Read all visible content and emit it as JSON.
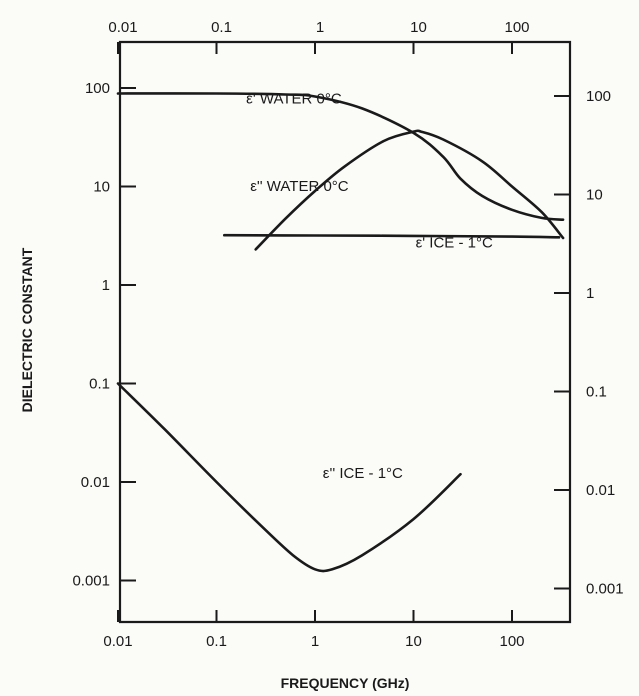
{
  "chart_data": {
    "type": "line",
    "title": "",
    "xlabel": "FREQUENCY (GHz)",
    "ylabel": "DIELECTRIC CONSTANT",
    "x_scale": "log",
    "y_scale": "log",
    "xlim": [
      0.01,
      400
    ],
    "ylim": [
      0.0005,
      150
    ],
    "x_ticks": [
      {
        "value": 0.01,
        "label": "0.01"
      },
      {
        "value": 0.1,
        "label": "0.1"
      },
      {
        "value": 1,
        "label": "1"
      },
      {
        "value": 10,
        "label": "10"
      },
      {
        "value": 100,
        "label": "100"
      }
    ],
    "y_ticks": [
      {
        "value": 100,
        "label": "100"
      },
      {
        "value": 10,
        "label": "10"
      },
      {
        "value": 1,
        "label": "1"
      },
      {
        "value": 0.1,
        "label": "0.1"
      },
      {
        "value": 0.01,
        "label": "0.01"
      },
      {
        "value": 0.001,
        "label": "0.001"
      }
    ],
    "grid": false,
    "series": [
      {
        "name": "ε' WATER 0°C",
        "x": [
          0.01,
          0.1,
          0.5,
          1,
          3,
          10,
          20,
          30,
          50,
          100,
          200,
          330
        ],
        "y": [
          88,
          88,
          86,
          82,
          62,
          35,
          20,
          12,
          8,
          5.8,
          4.8,
          4.6
        ]
      },
      {
        "name": "ε'' WATER 0°C",
        "x": [
          0.25,
          0.5,
          1,
          2,
          5,
          10,
          12,
          20,
          50,
          100,
          200,
          330
        ],
        "y": [
          2.3,
          4.7,
          9,
          16,
          29,
          36,
          36,
          30,
          18,
          10,
          5.5,
          3
        ]
      },
      {
        "name": "ε' ICE - 1°C",
        "x": [
          0.12,
          1,
          10,
          100,
          300
        ],
        "y": [
          3.2,
          3.18,
          3.15,
          3.1,
          3.05
        ]
      },
      {
        "name": "ε'' ICE - 1°C",
        "x": [
          0.01,
          0.03,
          0.1,
          0.3,
          0.6,
          1,
          1.5,
          3,
          10,
          30
        ],
        "y": [
          0.1,
          0.034,
          0.01,
          0.0034,
          0.0018,
          0.0013,
          0.0013,
          0.0018,
          0.0042,
          0.012
        ]
      }
    ],
    "labels": [
      {
        "text": "ε' WATER 0°C",
        "x": 0.2,
        "y": 70
      },
      {
        "text": "ε'' WATER 0°C",
        "x": 0.22,
        "y": 9
      },
      {
        "text": "ε' ICE - 1°C",
        "x": 10.5,
        "y": 2.4
      },
      {
        "text": "ε'' ICE - 1°C",
        "x": 1.2,
        "y": 0.011
      }
    ]
  }
}
